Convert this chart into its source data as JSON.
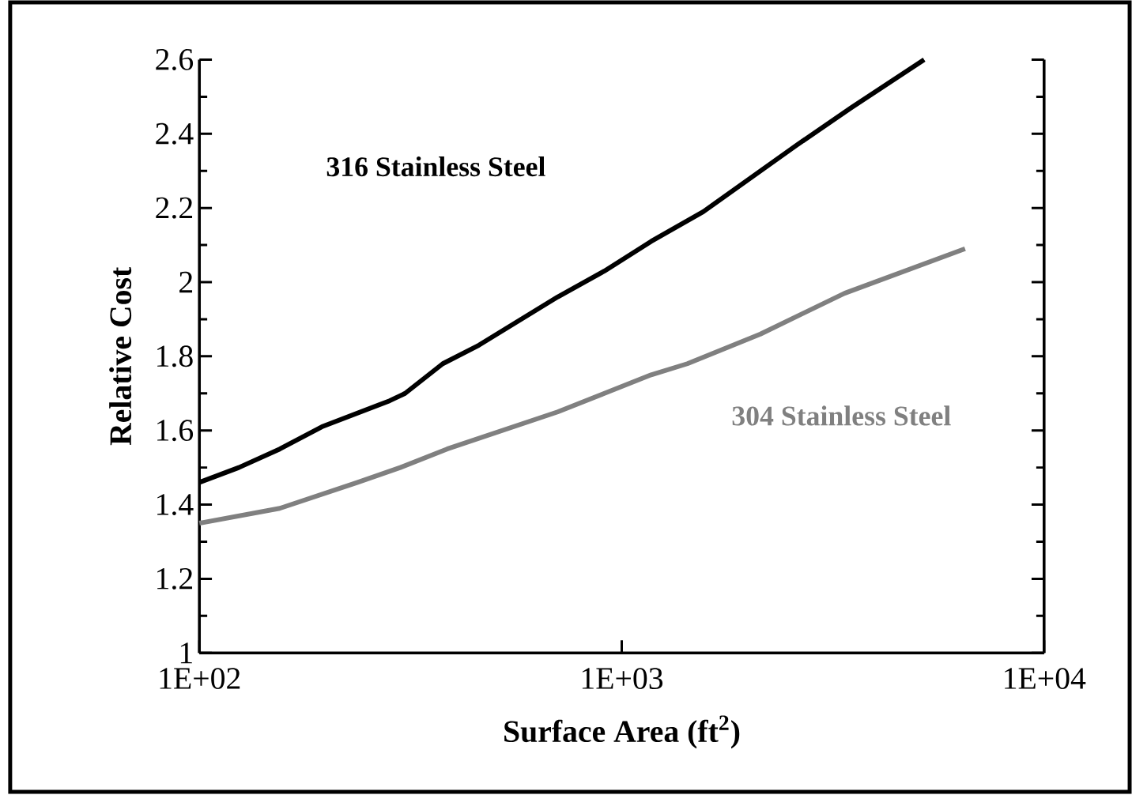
{
  "chart_data": {
    "type": "line",
    "xlabel": "Surface Area (ft$^{2}$)",
    "ylabel": "Relative Cost",
    "log": "x",
    "marker": "none",
    "line_style": "solid",
    "xlim": [
      100,
      10000
    ],
    "xticks": [
      {
        "value": 100,
        "label": "1E+02"
      },
      {
        "value": 1000,
        "label": "1E+03"
      },
      {
        "value": 10000,
        "label": "1E+04"
      }
    ],
    "ylim": [
      1,
      2.6
    ],
    "yticks": [
      1,
      1.2,
      1.4,
      1.6,
      1.8,
      2,
      2.2,
      2.4,
      2.6
    ],
    "series": [
      {
        "name": "316 Stainless Steel",
        "color": "#000000",
        "x": [
          100,
          124,
          155,
          195,
          282,
          307,
          377,
          459,
          705,
          910,
          1174,
          1560,
          2600,
          3490,
          5200
        ],
        "values": [
          1.46,
          1.5,
          1.55,
          1.61,
          1.68,
          1.7,
          1.78,
          1.83,
          1.96,
          2.03,
          2.11,
          2.19,
          2.37,
          2.47,
          2.6
        ]
      },
      {
        "name": "304 Stainless Steel",
        "color": "#808080",
        "x": [
          100,
          155,
          237,
          299,
          386,
          705,
          910,
          1174,
          1430,
          2130,
          3370,
          6500
        ],
        "values": [
          1.35,
          1.39,
          1.46,
          1.5,
          1.55,
          1.65,
          1.7,
          1.75,
          1.78,
          1.86,
          1.97,
          2.09
        ]
      }
    ]
  }
}
